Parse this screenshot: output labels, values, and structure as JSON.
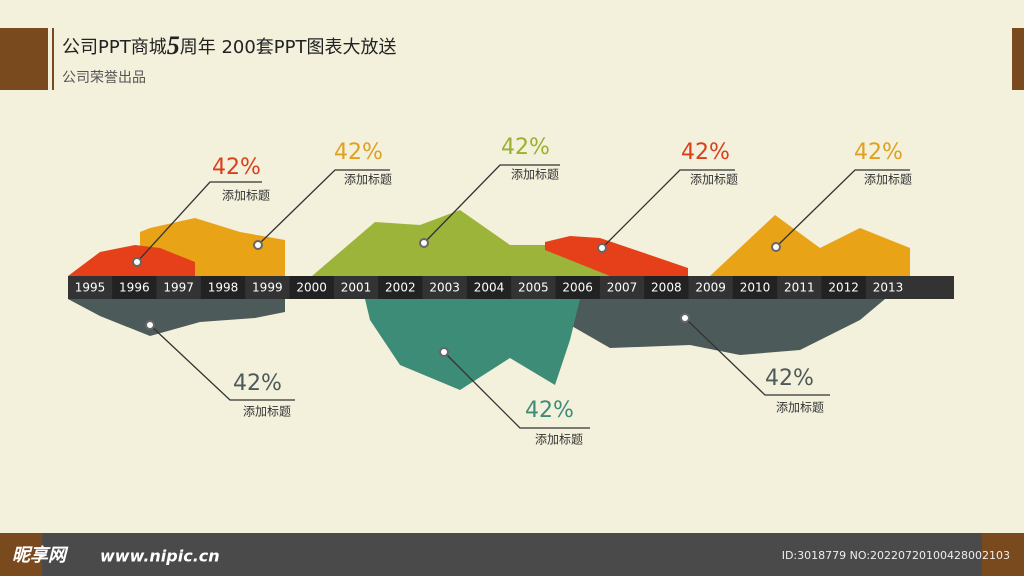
{
  "header": {
    "title_part1": "公司PPT商城",
    "title_big": "5",
    "title_part2": "周年  200套PPT图表大放送",
    "subtitle": "公司荣誉出品"
  },
  "timeline": {
    "years": [
      "1995",
      "1996",
      "1997",
      "1998",
      "1999",
      "2000",
      "2001",
      "2002",
      "2003",
      "2004",
      "2005",
      "2006",
      "2007",
      "2008",
      "2009",
      "2010",
      "2011",
      "2012",
      "2013"
    ]
  },
  "callouts": [
    {
      "value": "42%",
      "label": "添加标题"
    },
    {
      "value": "42%",
      "label": "添加标题"
    },
    {
      "value": "42%",
      "label": "添加标题"
    },
    {
      "value": "42%",
      "label": "添加标题"
    },
    {
      "value": "42%",
      "label": "添加标题"
    },
    {
      "value": "42%",
      "label": "添加标题"
    },
    {
      "value": "42%",
      "label": "添加标题"
    },
    {
      "value": "42%",
      "label": "添加标题"
    }
  ],
  "footer": {
    "logo": "昵享网",
    "site": "www.nipic.cn",
    "id": "ID:3018779 NO:20220720100428002103"
  }
}
